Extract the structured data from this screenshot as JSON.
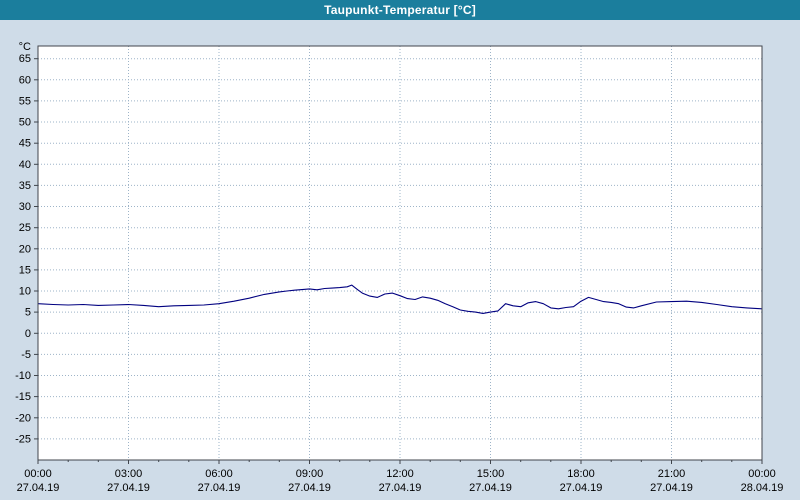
{
  "window": {
    "title": "Taupunkt-Temperatur [°C]"
  },
  "colors": {
    "header_bg": "#1b7e9d",
    "page_bg": "#cfdce8",
    "plot_bg": "#ffffff",
    "plot_border": "#40454c",
    "axis_text": "#000000"
  },
  "chart_data": {
    "type": "line",
    "title": "Taupunkt-Temperatur [°C]",
    "ylabel": "°C",
    "xlabel": "",
    "grid": true,
    "legend_position": "none",
    "line_color": "#000080",
    "grid_color": "#9eb4c8",
    "ylim": [
      -30,
      68
    ],
    "y_ticks": [
      -25,
      -20,
      -15,
      -10,
      -5,
      0,
      5,
      10,
      15,
      20,
      25,
      30,
      35,
      40,
      45,
      50,
      55,
      60,
      65
    ],
    "x_hours_range": [
      0,
      24
    ],
    "x_tick_hours": [
      0,
      3,
      6,
      9,
      12,
      15,
      18,
      21,
      24
    ],
    "x_tick_times": [
      "00:00",
      "03:00",
      "06:00",
      "09:00",
      "12:00",
      "15:00",
      "18:00",
      "21:00",
      "00:00"
    ],
    "x_tick_dates": [
      "27.04.19",
      "27.04.19",
      "27.04.19",
      "27.04.19",
      "27.04.19",
      "27.04.19",
      "27.04.19",
      "27.04.19",
      "28.04.19"
    ],
    "series": [
      {
        "name": "Taupunkt-Temperatur",
        "x": [
          0,
          0.5,
          1,
          1.5,
          2,
          2.5,
          3,
          3.5,
          4,
          4.5,
          5,
          5.5,
          6,
          6.5,
          7,
          7.5,
          8,
          8.25,
          8.5,
          9,
          9.25,
          9.5,
          9.75,
          10,
          10.25,
          10.4,
          10.6,
          10.75,
          11,
          11.25,
          11.5,
          11.75,
          12,
          12.25,
          12.5,
          12.75,
          13,
          13.25,
          13.5,
          13.75,
          14,
          14.25,
          14.5,
          14.75,
          15,
          15.25,
          15.5,
          15.75,
          16,
          16.25,
          16.5,
          16.75,
          17,
          17.25,
          17.5,
          17.75,
          18,
          18.25,
          18.5,
          18.75,
          19,
          19.25,
          19.5,
          19.75,
          20,
          20.5,
          21,
          21.5,
          22,
          22.5,
          23,
          23.5,
          24
        ],
        "y": [
          7.0,
          6.8,
          6.7,
          6.8,
          6.6,
          6.7,
          6.8,
          6.6,
          6.3,
          6.5,
          6.6,
          6.7,
          7.0,
          7.6,
          8.3,
          9.2,
          9.8,
          10.0,
          10.2,
          10.5,
          10.3,
          10.6,
          10.7,
          10.8,
          11.0,
          11.4,
          10.3,
          9.5,
          8.8,
          8.5,
          9.3,
          9.5,
          8.9,
          8.2,
          8.0,
          8.6,
          8.3,
          7.8,
          7.0,
          6.3,
          5.5,
          5.2,
          5.0,
          4.7,
          5.0,
          5.3,
          7.0,
          6.5,
          6.3,
          7.2,
          7.5,
          7.0,
          6.0,
          5.8,
          6.1,
          6.3,
          7.6,
          8.5,
          8.0,
          7.5,
          7.3,
          7.0,
          6.2,
          6.0,
          6.5,
          7.4,
          7.5,
          7.6,
          7.3,
          6.8,
          6.3,
          6.0,
          5.8
        ]
      }
    ]
  }
}
